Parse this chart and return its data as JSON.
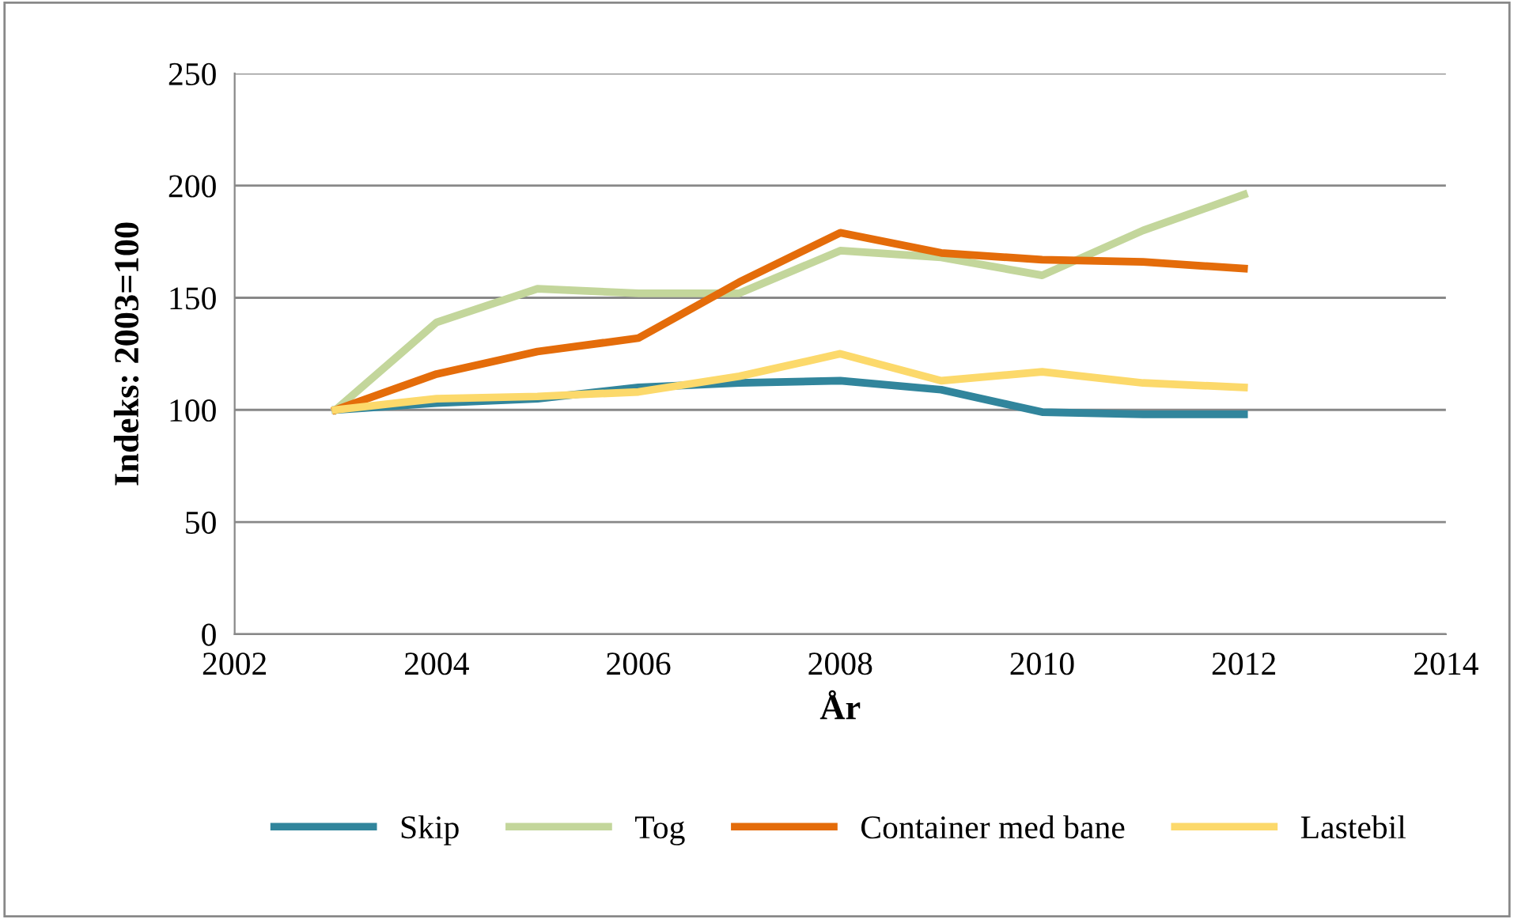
{
  "chart_data": {
    "type": "line",
    "xlabel": "År",
    "ylabel": "Indeks: 2003=100",
    "x": [
      2003,
      2004,
      2005,
      2006,
      2007,
      2008,
      2009,
      2010,
      2011,
      2012
    ],
    "series": [
      {
        "name": "Skip",
        "color": "#31859c",
        "values": [
          100,
          103,
          105,
          110,
          112,
          113,
          109,
          99,
          98,
          98
        ]
      },
      {
        "name": "Tog",
        "color": "#c3d69b",
        "values": [
          100,
          139,
          154,
          152,
          152,
          171,
          168,
          160,
          180,
          196
        ]
      },
      {
        "name": "Container med bane",
        "color": "#e46c0a",
        "values": [
          100,
          116,
          126,
          132,
          157,
          179,
          170,
          167,
          166,
          163
        ]
      },
      {
        "name": "Lastebil",
        "color": "#fcd96b",
        "values": [
          100,
          105,
          106,
          108,
          115,
          125,
          113,
          117,
          112,
          110
        ]
      }
    ],
    "xlim": [
      2002,
      2014
    ],
    "xticks": [
      2002,
      2004,
      2006,
      2008,
      2010,
      2012,
      2014
    ],
    "ylim": [
      0,
      250
    ],
    "yticks": [
      0,
      50,
      100,
      150,
      200,
      250
    ],
    "grid": "y",
    "legend": "bottom",
    "marker": "none",
    "line_style": "solid"
  }
}
